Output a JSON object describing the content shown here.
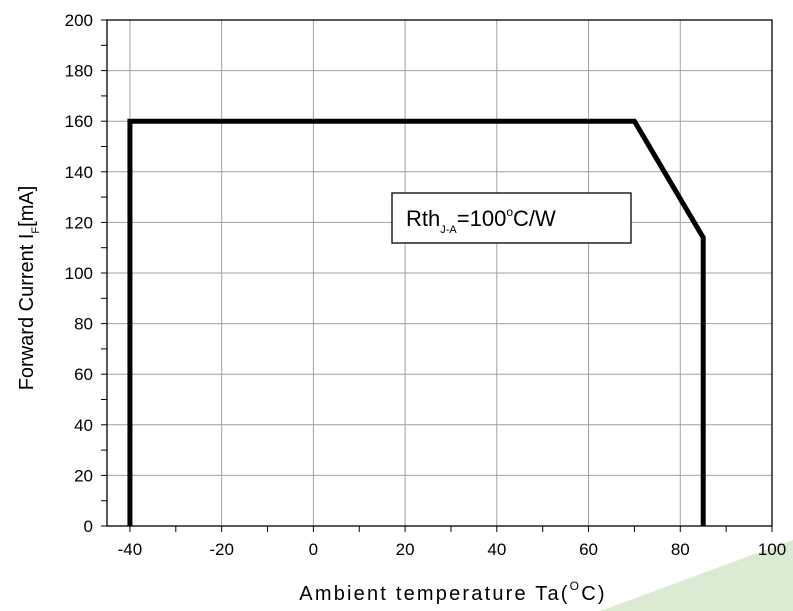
{
  "chart_data": {
    "type": "line",
    "xlabel_main": "Ambient temperature Ta(",
    "xlabel_sup": "O",
    "xlabel_tail": "C)",
    "ylabel_main": "Forward Current I",
    "ylabel_sub": "F",
    "ylabel_tail": "[mA]",
    "xlim": [
      -45,
      100
    ],
    "ylim": [
      0,
      200
    ],
    "x_ticks": [
      -40,
      -20,
      0,
      20,
      40,
      60,
      80,
      100
    ],
    "y_ticks": [
      0,
      20,
      40,
      60,
      80,
      100,
      120,
      140,
      160,
      180,
      200
    ],
    "grid_x": [
      -40,
      -20,
      0,
      20,
      40,
      60,
      80
    ],
    "grid_y": [
      20,
      40,
      60,
      80,
      100,
      120,
      140,
      160,
      180
    ],
    "grid": true,
    "series": [
      {
        "x": [
          -40,
          -40,
          70,
          85,
          85
        ],
        "y": [
          0,
          160,
          160,
          114,
          0
        ],
        "color": "#000000"
      }
    ],
    "annotation": {
      "main": "Rth",
      "sub": "J-A",
      "value": "=100",
      "deg": "o",
      "unit": "C/W"
    }
  },
  "colors": {
    "curve": "#000000",
    "grid": "#a0a0a0",
    "axis": "#000000",
    "corner_accent": "#a9cf98"
  }
}
